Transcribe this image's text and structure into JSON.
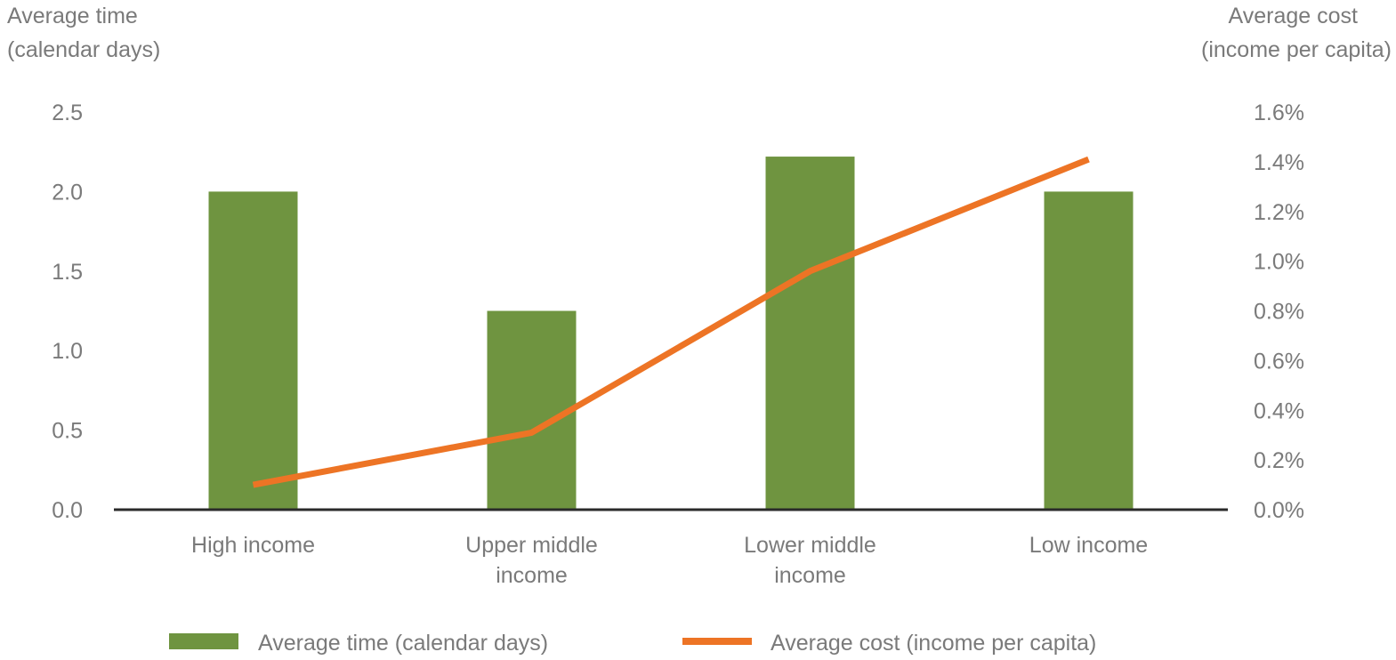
{
  "chart_data": {
    "type": "bar",
    "categories": [
      "High income",
      "Upper middle income",
      "Lower middle income",
      "Low income"
    ],
    "category_lines": [
      [
        "High income"
      ],
      [
        "Upper middle",
        "income"
      ],
      [
        "Lower middle",
        "income"
      ],
      [
        "Low income"
      ]
    ],
    "series": [
      {
        "name": "Average time (calendar days)",
        "type": "bar",
        "axis": "left",
        "values": [
          2.0,
          1.25,
          2.22,
          2.0
        ],
        "color": "#6f9440"
      },
      {
        "name": "Average cost (income per capita)",
        "type": "line",
        "axis": "right",
        "values": [
          0.1,
          0.31,
          0.96,
          1.41
        ],
        "color": "#ed7425"
      }
    ],
    "left_axis": {
      "title_lines": [
        "Average time",
        "(calendar days)"
      ],
      "ylim": [
        0,
        2.5
      ],
      "ticks": [
        "0.0",
        "0.5",
        "1.0",
        "1.5",
        "2.0",
        "2.5"
      ]
    },
    "right_axis": {
      "title_lines": [
        "Average cost",
        "(income per capita)"
      ],
      "ylim": [
        0,
        1.6
      ],
      "ticks": [
        "0.0%",
        "0.2%",
        "0.4%",
        "0.6%",
        "0.8%",
        "1.0%",
        "1.2%",
        "1.4%",
        "1.6%"
      ]
    },
    "grid": false,
    "legend": "bottom-center"
  }
}
